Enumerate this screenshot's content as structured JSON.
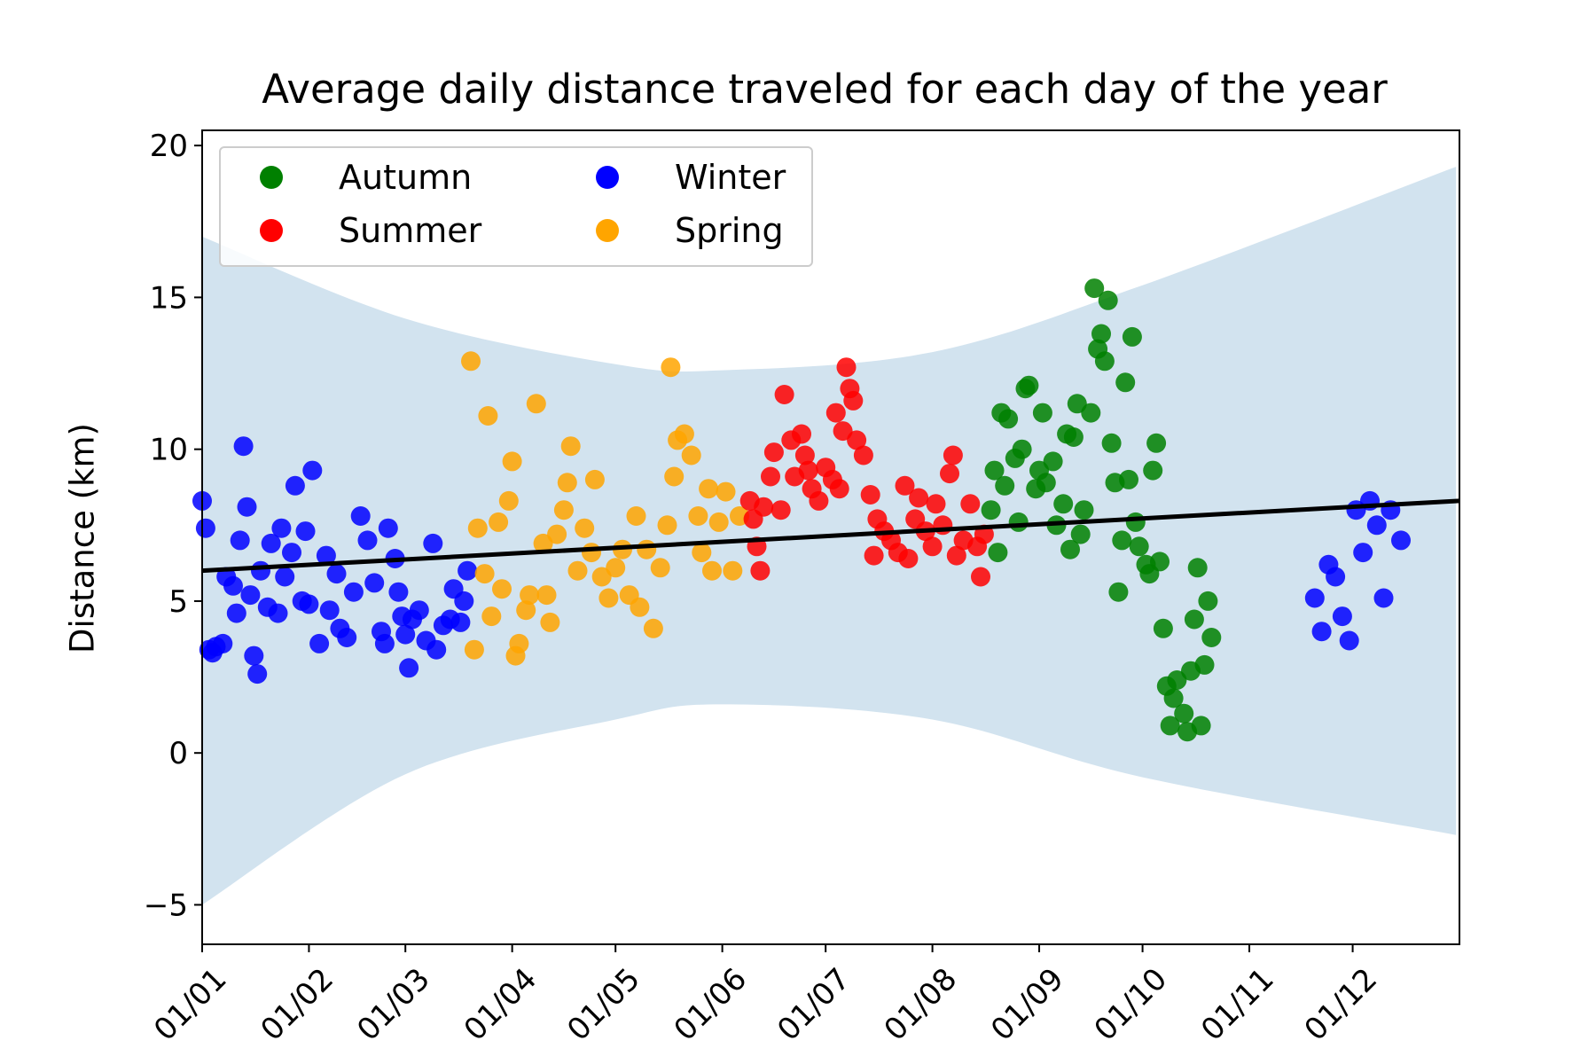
{
  "chart_data": {
    "type": "scatter",
    "title": "Average daily distance traveled for each day of the year",
    "xlabel": "",
    "ylabel": "Distance (km)",
    "x_axis": {
      "type": "date",
      "range": [
        "01/01",
        "31/12"
      ],
      "tick_labels": [
        "01/01",
        "01/02",
        "01/03",
        "01/04",
        "01/05",
        "01/06",
        "01/07",
        "01/08",
        "01/09",
        "01/10",
        "01/11",
        "01/12"
      ]
    },
    "ylim": [
      -6.3,
      20.5
    ],
    "yticks": [
      -5,
      0,
      5,
      10,
      15,
      20
    ],
    "grid": false,
    "legend": {
      "placement": "top-left",
      "columns": 2,
      "entries": [
        "Autumn",
        "Winter",
        "Summer",
        "Spring"
      ]
    },
    "colors": {
      "Autumn": "#008000",
      "Winter": "#0000ff",
      "Summer": "#ff0000",
      "Spring": "#ffa500",
      "trend": "#000000",
      "band": "#d2e3ef"
    },
    "trend_line": {
      "label": "",
      "points": [
        [
          "01/01",
          6.0
        ],
        [
          "31/12",
          8.3
        ]
      ]
    },
    "confidence_band": {
      "upper": [
        [
          "01/01",
          17.0
        ],
        [
          "01/03",
          14.3
        ],
        [
          "01/05",
          12.8
        ],
        [
          "01/06",
          12.6
        ],
        [
          "01/08",
          13.2
        ],
        [
          "01/10",
          15.4
        ],
        [
          "31/12",
          19.3
        ]
      ],
      "lower": [
        [
          "01/01",
          -5.0
        ],
        [
          "01/03",
          -0.7
        ],
        [
          "01/05",
          1.1
        ],
        [
          "01/06",
          1.6
        ],
        [
          "01/08",
          1.1
        ],
        [
          "01/10",
          -0.8
        ],
        [
          "31/12",
          -2.7
        ]
      ]
    },
    "series": [
      {
        "name": "Winter",
        "points": [
          [
            "01/01",
            8.3
          ],
          [
            "02/01",
            7.4
          ],
          [
            "03/01",
            3.4
          ],
          [
            "04/01",
            3.3
          ],
          [
            "05/01",
            3.5
          ],
          [
            "07/01",
            3.6
          ],
          [
            "08/01",
            5.8
          ],
          [
            "10/01",
            5.5
          ],
          [
            "11/01",
            4.6
          ],
          [
            "12/01",
            7.0
          ],
          [
            "13/01",
            10.1
          ],
          [
            "14/01",
            8.1
          ],
          [
            "15/01",
            5.2
          ],
          [
            "16/01",
            3.2
          ],
          [
            "17/01",
            2.6
          ],
          [
            "18/01",
            6.0
          ],
          [
            "20/01",
            4.8
          ],
          [
            "21/01",
            6.9
          ],
          [
            "23/01",
            4.6
          ],
          [
            "24/01",
            7.4
          ],
          [
            "25/01",
            5.8
          ],
          [
            "27/01",
            6.6
          ],
          [
            "28/01",
            8.8
          ],
          [
            "30/01",
            5.0
          ],
          [
            "31/01",
            7.3
          ],
          [
            "01/02",
            4.9
          ],
          [
            "02/02",
            9.3
          ],
          [
            "04/02",
            3.6
          ],
          [
            "06/02",
            6.5
          ],
          [
            "07/02",
            4.7
          ],
          [
            "09/02",
            5.9
          ],
          [
            "10/02",
            4.1
          ],
          [
            "12/02",
            3.8
          ],
          [
            "14/02",
            5.3
          ],
          [
            "16/02",
            7.8
          ],
          [
            "18/02",
            7.0
          ],
          [
            "20/02",
            5.6
          ],
          [
            "22/02",
            4.0
          ],
          [
            "23/02",
            3.6
          ],
          [
            "24/02",
            7.4
          ],
          [
            "26/02",
            6.4
          ],
          [
            "27/02",
            5.3
          ],
          [
            "28/02",
            4.5
          ],
          [
            "01/03",
            3.9
          ],
          [
            "02/03",
            2.8
          ],
          [
            "03/03",
            4.4
          ],
          [
            "05/03",
            4.7
          ],
          [
            "07/03",
            3.7
          ],
          [
            "09/03",
            6.9
          ],
          [
            "10/03",
            3.4
          ],
          [
            "12/03",
            4.2
          ],
          [
            "14/03",
            4.4
          ],
          [
            "15/03",
            5.4
          ],
          [
            "17/03",
            4.3
          ],
          [
            "18/03",
            5.0
          ],
          [
            "19/03",
            6.0
          ]
        ]
      },
      {
        "name": "Spring",
        "points": [
          [
            "20/03",
            12.9
          ],
          [
            "21/03",
            3.4
          ],
          [
            "22/03",
            7.4
          ],
          [
            "24/03",
            5.9
          ],
          [
            "25/03",
            11.1
          ],
          [
            "26/03",
            4.5
          ],
          [
            "28/03",
            7.6
          ],
          [
            "29/03",
            5.4
          ],
          [
            "31/03",
            8.3
          ],
          [
            "01/04",
            9.6
          ],
          [
            "02/04",
            3.2
          ],
          [
            "03/04",
            3.6
          ],
          [
            "05/04",
            4.7
          ],
          [
            "06/04",
            5.2
          ],
          [
            "08/04",
            11.5
          ],
          [
            "10/04",
            6.9
          ],
          [
            "11/04",
            5.2
          ],
          [
            "12/04",
            4.3
          ],
          [
            "14/04",
            7.2
          ],
          [
            "16/04",
            8.0
          ],
          [
            "17/04",
            8.9
          ],
          [
            "18/04",
            10.1
          ],
          [
            "20/04",
            6.0
          ],
          [
            "22/04",
            7.4
          ],
          [
            "24/04",
            6.6
          ],
          [
            "25/04",
            9.0
          ],
          [
            "27/04",
            5.8
          ],
          [
            "29/04",
            5.1
          ],
          [
            "01/05",
            6.1
          ],
          [
            "03/05",
            6.7
          ],
          [
            "05/05",
            5.2
          ],
          [
            "07/05",
            7.8
          ],
          [
            "08/05",
            4.8
          ],
          [
            "10/05",
            6.7
          ],
          [
            "12/05",
            4.1
          ],
          [
            "14/05",
            6.1
          ],
          [
            "16/05",
            7.5
          ],
          [
            "17/05",
            12.7
          ],
          [
            "18/05",
            9.1
          ],
          [
            "19/05",
            10.3
          ],
          [
            "21/05",
            10.5
          ],
          [
            "23/05",
            9.8
          ],
          [
            "25/05",
            7.8
          ],
          [
            "26/05",
            6.6
          ],
          [
            "28/05",
            8.7
          ],
          [
            "29/05",
            6.0
          ],
          [
            "31/05",
            7.6
          ],
          [
            "02/06",
            8.6
          ],
          [
            "04/06",
            6.0
          ],
          [
            "06/06",
            7.8
          ]
        ]
      },
      {
        "name": "Summer",
        "points": [
          [
            "09/06",
            8.3
          ],
          [
            "10/06",
            7.7
          ],
          [
            "11/06",
            6.8
          ],
          [
            "12/06",
            6.0
          ],
          [
            "13/06",
            8.1
          ],
          [
            "15/06",
            9.1
          ],
          [
            "16/06",
            9.9
          ],
          [
            "18/06",
            8.0
          ],
          [
            "19/06",
            11.8
          ],
          [
            "21/06",
            10.3
          ],
          [
            "22/06",
            9.1
          ],
          [
            "24/06",
            10.5
          ],
          [
            "25/06",
            9.8
          ],
          [
            "26/06",
            9.3
          ],
          [
            "27/06",
            8.7
          ],
          [
            "29/06",
            8.3
          ],
          [
            "01/07",
            9.4
          ],
          [
            "03/07",
            9.0
          ],
          [
            "04/07",
            11.2
          ],
          [
            "05/07",
            8.7
          ],
          [
            "06/07",
            10.6
          ],
          [
            "07/07",
            12.7
          ],
          [
            "08/07",
            12.0
          ],
          [
            "09/07",
            11.6
          ],
          [
            "10/07",
            10.3
          ],
          [
            "12/07",
            9.8
          ],
          [
            "14/07",
            8.5
          ],
          [
            "15/07",
            6.5
          ],
          [
            "16/07",
            7.7
          ],
          [
            "18/07",
            7.3
          ],
          [
            "20/07",
            7.0
          ],
          [
            "22/07",
            6.6
          ],
          [
            "24/07",
            8.8
          ],
          [
            "25/07",
            6.4
          ],
          [
            "27/07",
            7.7
          ],
          [
            "28/07",
            8.4
          ],
          [
            "30/07",
            7.3
          ],
          [
            "01/08",
            6.8
          ],
          [
            "02/08",
            8.2
          ],
          [
            "04/08",
            7.5
          ],
          [
            "06/08",
            9.2
          ],
          [
            "07/08",
            9.8
          ],
          [
            "08/08",
            6.5
          ],
          [
            "10/08",
            7.0
          ],
          [
            "12/08",
            8.2
          ],
          [
            "14/08",
            6.8
          ],
          [
            "15/08",
            5.8
          ],
          [
            "16/08",
            7.2
          ]
        ]
      },
      {
        "name": "Autumn",
        "points": [
          [
            "18/08",
            8.0
          ],
          [
            "19/08",
            9.3
          ],
          [
            "20/08",
            6.6
          ],
          [
            "21/08",
            11.2
          ],
          [
            "22/08",
            8.8
          ],
          [
            "23/08",
            11.0
          ],
          [
            "25/08",
            9.7
          ],
          [
            "26/08",
            7.6
          ],
          [
            "27/08",
            10.0
          ],
          [
            "28/08",
            12.0
          ],
          [
            "29/08",
            12.1
          ],
          [
            "31/08",
            8.7
          ],
          [
            "01/09",
            9.3
          ],
          [
            "02/09",
            11.2
          ],
          [
            "03/09",
            8.9
          ],
          [
            "05/09",
            9.6
          ],
          [
            "06/09",
            7.5
          ],
          [
            "08/09",
            8.2
          ],
          [
            "09/09",
            10.5
          ],
          [
            "10/09",
            6.7
          ],
          [
            "11/09",
            10.4
          ],
          [
            "12/09",
            11.5
          ],
          [
            "13/09",
            7.2
          ],
          [
            "14/09",
            8.0
          ],
          [
            "16/09",
            11.2
          ],
          [
            "17/09",
            15.3
          ],
          [
            "18/09",
            13.3
          ],
          [
            "19/09",
            13.8
          ],
          [
            "20/09",
            12.9
          ],
          [
            "21/09",
            14.9
          ],
          [
            "22/09",
            10.2
          ],
          [
            "23/09",
            8.9
          ],
          [
            "24/09",
            5.3
          ],
          [
            "25/09",
            7.0
          ],
          [
            "26/09",
            12.2
          ],
          [
            "27/09",
            9.0
          ],
          [
            "28/09",
            13.7
          ],
          [
            "29/09",
            7.6
          ],
          [
            "30/09",
            6.8
          ],
          [
            "02/10",
            6.2
          ],
          [
            "03/10",
            5.9
          ],
          [
            "04/10",
            9.3
          ],
          [
            "05/10",
            10.2
          ],
          [
            "06/10",
            6.3
          ],
          [
            "07/10",
            4.1
          ],
          [
            "08/10",
            2.2
          ],
          [
            "09/10",
            0.9
          ],
          [
            "10/10",
            1.8
          ],
          [
            "11/10",
            2.4
          ],
          [
            "13/10",
            1.3
          ],
          [
            "14/10",
            0.7
          ],
          [
            "15/10",
            2.7
          ],
          [
            "16/10",
            4.4
          ],
          [
            "17/10",
            6.1
          ],
          [
            "18/10",
            0.9
          ],
          [
            "19/10",
            2.9
          ],
          [
            "20/10",
            5.0
          ],
          [
            "21/10",
            3.8
          ]
        ]
      },
      {
        "name": "Winter",
        "points": [
          [
            "20/11",
            5.1
          ],
          [
            "22/11",
            4.0
          ],
          [
            "24/11",
            6.2
          ],
          [
            "26/11",
            5.8
          ],
          [
            "28/11",
            4.5
          ],
          [
            "30/11",
            3.7
          ],
          [
            "02/12",
            8.0
          ],
          [
            "04/12",
            6.6
          ],
          [
            "06/12",
            8.3
          ],
          [
            "08/12",
            7.5
          ],
          [
            "10/12",
            5.1
          ],
          [
            "12/12",
            8.0
          ],
          [
            "15/12",
            7.0
          ]
        ]
      }
    ]
  }
}
